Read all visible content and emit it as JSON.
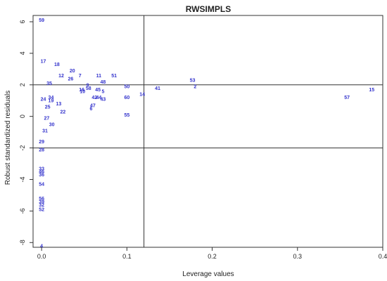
{
  "chart_data": {
    "type": "scatter",
    "title": "RWSIMPLS",
    "xlabel": "Leverage values",
    "ylabel": "Robust standardized residuals",
    "xlim": [
      -0.01,
      0.4
    ],
    "ylim": [
      -8.3,
      6.4
    ],
    "x_ticks": [
      0.0,
      0.1,
      0.2,
      0.3,
      0.4
    ],
    "x_tick_labels": [
      "0.0",
      "0.1",
      "0.2",
      "0.3",
      "0.4"
    ],
    "y_ticks": [
      -8,
      -6,
      -4,
      -2,
      0,
      2,
      4,
      6
    ],
    "y_tick_labels": [
      "-8",
      "-6",
      "-4",
      "-2",
      "0",
      "2",
      "4",
      "6"
    ],
    "cutoff_x": 0.12,
    "cutoff_y": [
      2,
      -2
    ],
    "grid": false,
    "marker_color": "#3333cc",
    "line_color": "#333333",
    "points": [
      {
        "label": "59",
        "x": 0.0,
        "y": 6.1
      },
      {
        "label": "17",
        "x": 0.002,
        "y": 3.5
      },
      {
        "label": "18",
        "x": 0.018,
        "y": 3.3
      },
      {
        "label": "20",
        "x": 0.036,
        "y": 2.9
      },
      {
        "label": "7",
        "x": 0.045,
        "y": 2.6
      },
      {
        "label": "12",
        "x": 0.023,
        "y": 2.6
      },
      {
        "label": "11",
        "x": 0.067,
        "y": 2.6
      },
      {
        "label": "51",
        "x": 0.085,
        "y": 2.6
      },
      {
        "label": "26",
        "x": 0.034,
        "y": 2.4
      },
      {
        "label": "48",
        "x": 0.072,
        "y": 2.2
      },
      {
        "label": "35",
        "x": 0.009,
        "y": 2.1
      },
      {
        "label": "9",
        "x": 0.054,
        "y": 2.0
      },
      {
        "label": "50",
        "x": 0.1,
        "y": 1.9
      },
      {
        "label": "58",
        "x": 0.055,
        "y": 1.8
      },
      {
        "label": "16",
        "x": 0.047,
        "y": 1.7
      },
      {
        "label": "10",
        "x": 0.048,
        "y": 1.6
      },
      {
        "label": "45",
        "x": 0.066,
        "y": 1.7
      },
      {
        "label": "5",
        "x": 0.072,
        "y": 1.6
      },
      {
        "label": "14",
        "x": 0.118,
        "y": 1.4
      },
      {
        "label": "41",
        "x": 0.136,
        "y": 1.8
      },
      {
        "label": "53",
        "x": 0.177,
        "y": 2.3
      },
      {
        "label": "2",
        "x": 0.18,
        "y": 1.9
      },
      {
        "label": "57",
        "x": 0.358,
        "y": 1.2
      },
      {
        "label": "15",
        "x": 0.387,
        "y": 1.7
      },
      {
        "label": "60",
        "x": 0.1,
        "y": 1.2
      },
      {
        "label": "42",
        "x": 0.062,
        "y": 1.2
      },
      {
        "label": "44",
        "x": 0.067,
        "y": 1.2
      },
      {
        "label": "43",
        "x": 0.072,
        "y": 1.1
      },
      {
        "label": "24",
        "x": 0.002,
        "y": 1.1
      },
      {
        "label": "34",
        "x": 0.011,
        "y": 1.2
      },
      {
        "label": "19",
        "x": 0.011,
        "y": 1.0
      },
      {
        "label": "13",
        "x": 0.02,
        "y": 0.8
      },
      {
        "label": "47",
        "x": 0.06,
        "y": 0.7
      },
      {
        "label": "6",
        "x": 0.058,
        "y": 0.5
      },
      {
        "label": "25",
        "x": 0.007,
        "y": 0.6
      },
      {
        "label": "22",
        "x": 0.025,
        "y": 0.3
      },
      {
        "label": "55",
        "x": 0.1,
        "y": 0.1
      },
      {
        "label": "27",
        "x": 0.006,
        "y": -0.1
      },
      {
        "label": "30",
        "x": 0.012,
        "y": -0.5
      },
      {
        "label": "31",
        "x": 0.004,
        "y": -0.9
      },
      {
        "label": "29",
        "x": 0.0,
        "y": -1.6
      },
      {
        "label": "28",
        "x": 0.0,
        "y": -2.1
      },
      {
        "label": "33",
        "x": 0.0,
        "y": -3.3
      },
      {
        "label": "46",
        "x": 0.0,
        "y": -3.5
      },
      {
        "label": "36",
        "x": 0.0,
        "y": -3.7
      },
      {
        "label": "54",
        "x": 0.0,
        "y": -4.3
      },
      {
        "label": "56",
        "x": 0.0,
        "y": -5.2
      },
      {
        "label": "39",
        "x": 0.0,
        "y": -5.4
      },
      {
        "label": "32",
        "x": 0.0,
        "y": -5.6
      },
      {
        "label": "52",
        "x": 0.0,
        "y": -5.9
      },
      {
        "label": "4",
        "x": 0.0,
        "y": -8.2
      }
    ]
  }
}
